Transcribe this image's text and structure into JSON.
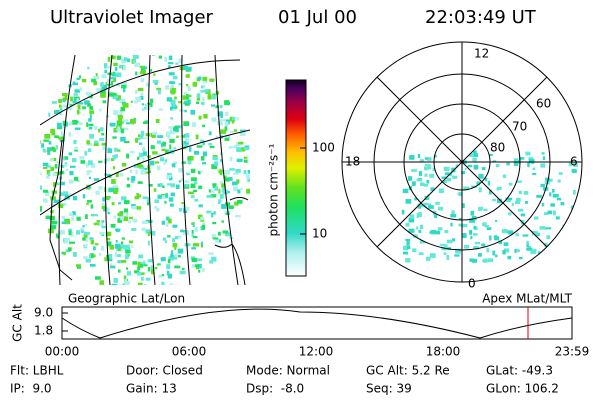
{
  "header": {
    "instrument": "Ultraviolet Imager",
    "date": "01 Jul 00",
    "time": "22:03:49 UT"
  },
  "colorbar": {
    "label": "photon cm⁻²s⁻¹",
    "ticks": [
      "100",
      "10"
    ]
  },
  "left_map": {
    "label": "Geographic Lat/Lon"
  },
  "polar_plot": {
    "label": "Apex MLat/MLT",
    "mlt_labels": [
      "12",
      "18",
      "6",
      "0"
    ],
    "lat_labels": [
      "60",
      "70",
      "80"
    ]
  },
  "altitude_plot": {
    "ylabel": "GC Alt",
    "yticks": [
      "9.0",
      "1.8"
    ],
    "xticks": [
      "00:00",
      "06:00",
      "12:00",
      "18:00",
      "23:59"
    ]
  },
  "status": [
    [
      "Flt: LBHL",
      "Door: Closed",
      "Mode: Normal",
      "GC Alt: 5.2 Re",
      "GLat: -49.3"
    ],
    [
      "IP:  9.0",
      "Gain: 13",
      "Dsp:  -8.0",
      "Seq: 39",
      "GLon: 106.2"
    ]
  ]
}
